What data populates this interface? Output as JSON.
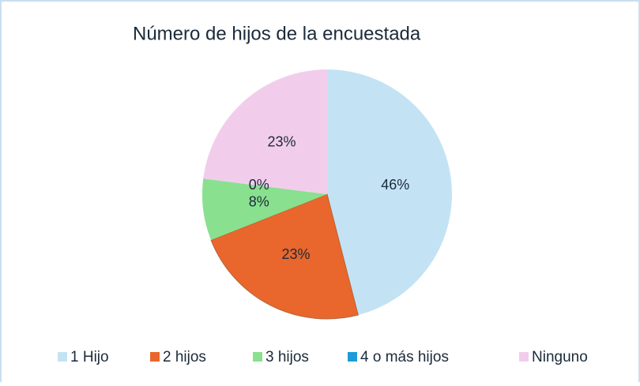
{
  "chart_data": {
    "type": "pie",
    "title": "Número de hijos de la encuestada",
    "categories": [
      "1 Hijo",
      "2 hijos",
      "3 hijos",
      "4 o más hijos",
      "Ninguno"
    ],
    "values": [
      46,
      23,
      8,
      0,
      23
    ],
    "value_labels": [
      "46%",
      "23%",
      "8%",
      "0%",
      "23%"
    ],
    "colors": [
      "#c3e3f4",
      "#e9662c",
      "#89e08f",
      "#1e9bd7",
      "#f1cdeb"
    ],
    "legend": "bottom"
  }
}
